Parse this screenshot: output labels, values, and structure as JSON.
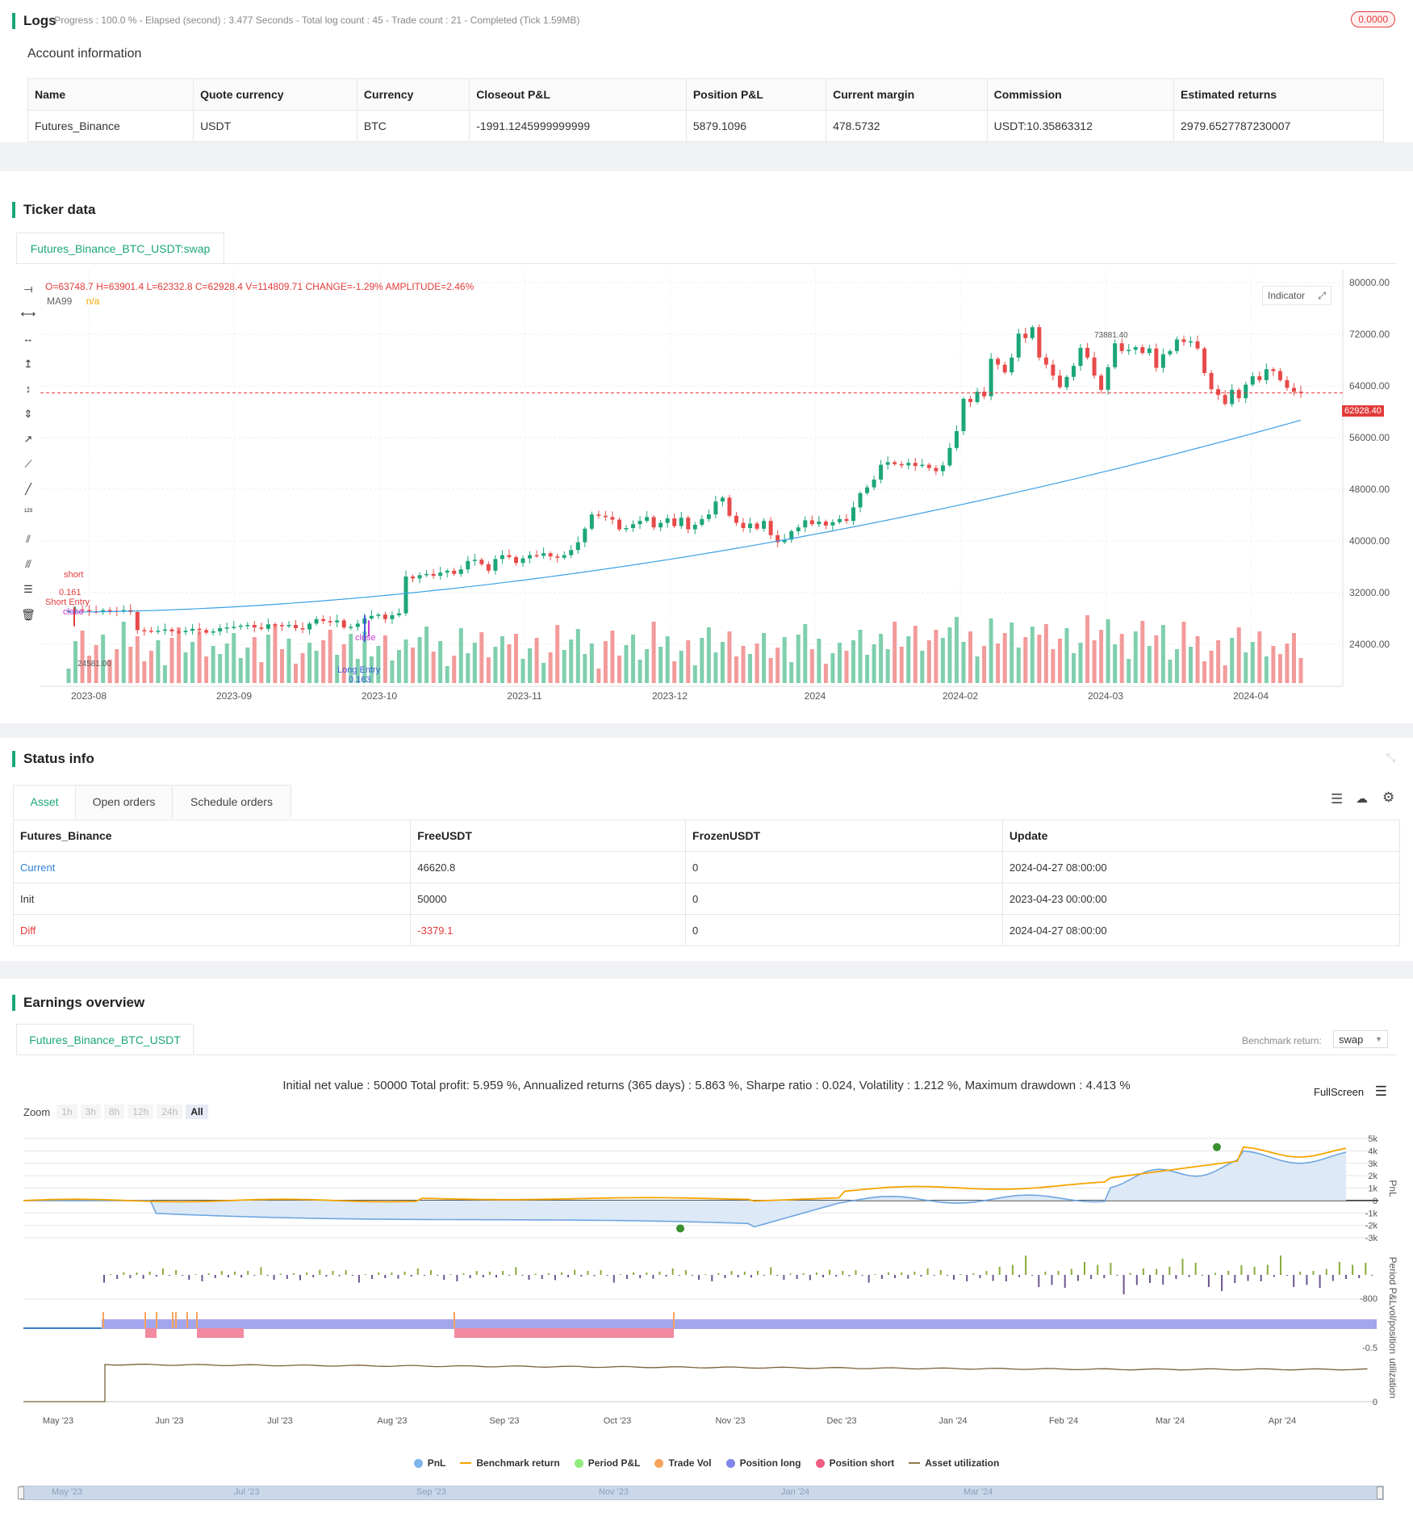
{
  "logs": {
    "title": "Logs",
    "status": "- Progress : 100.0 % - Elapsed (second) : 3.477  Seconds - Total log count : 45 - Trade count : 21 - Completed (Tick 1.59MB)",
    "badge": "0.0000"
  },
  "account": {
    "title": "Account information",
    "headers": [
      "Name",
      "Quote currency",
      "Currency",
      "Closeout P&L",
      "Position P&L",
      "Current margin",
      "Commission",
      "Estimated returns"
    ],
    "row": [
      "Futures_Binance",
      "USDT",
      "BTC",
      "-1991.1245999999999",
      "5879.1096",
      "478.5732",
      "USDT:10.35863312",
      "2979.6527787230007"
    ]
  },
  "ticker": {
    "title": "Ticker data",
    "tab": "Futures_Binance_BTC_USDT:swap",
    "ohlc": {
      "o": "O=63748.7",
      "h": "H=63901.4",
      "l": "L=62332.8",
      "c": "C=62928.4",
      "v": "V=114809.71",
      "change": "CHANGE=-1.29%",
      "amp": "AMPLITUDE=2.46%"
    },
    "ma_label": "MA99",
    "ma_value": "n/a",
    "indicator_btn": "Indicator",
    "last_price": "62928.40",
    "high_marker": "73881.40",
    "low_marker": "24581.00",
    "annotations": {
      "short": "short",
      "short_qty": "0.161",
      "short_entry": "Short Entry",
      "close1": "close",
      "close2": "close",
      "long_entry": "Long Entry",
      "long_qty": "0.163"
    },
    "chart_data": {
      "type": "candlestick",
      "x_ticks": [
        "2023-08",
        "2023-09",
        "2023-10",
        "2023-11",
        "2023-12",
        "2024",
        "2024-02",
        "2024-03",
        "2024-04"
      ],
      "y_ticks": [
        "80000.00",
        "72000.00",
        "64000.00",
        "56000.00",
        "48000.00",
        "40000.00",
        "32000.00",
        "24000.00"
      ],
      "ylim": [
        18000,
        82000
      ],
      "close_path": [
        29200,
        29400,
        29300,
        29100,
        29000,
        29300,
        29200,
        29100,
        29300,
        29000,
        26200,
        26100,
        26000,
        26100,
        26300,
        26000,
        25900,
        26100,
        26400,
        26200,
        25800,
        26000,
        26500,
        26600,
        26700,
        26900,
        27000,
        26600,
        26400,
        27100,
        27000,
        26800,
        27000,
        26500,
        26300,
        27200,
        27900,
        27600,
        27400,
        27700,
        26600,
        26700,
        27200,
        28000,
        28400,
        28600,
        27900,
        28500,
        28800,
        34500,
        34200,
        34700,
        34900,
        34600,
        35100,
        35400,
        34900,
        35600,
        36900,
        37100,
        36400,
        35400,
        37200,
        37800,
        37500,
        36600,
        37300,
        37800,
        37700,
        38100,
        37600,
        37400,
        37800,
        38600,
        39800,
        41900,
        44100,
        43900,
        43700,
        43300,
        41800,
        42000,
        42600,
        43100,
        43700,
        42100,
        42800,
        43500,
        42300,
        43600,
        41800,
        42500,
        43400,
        44100,
        46100,
        46700,
        43900,
        42800,
        42000,
        42700,
        41900,
        43100,
        40900,
        39800,
        40200,
        41500,
        42100,
        43200,
        42600,
        43000,
        42400,
        42900,
        43400,
        43100,
        45200,
        47400,
        48300,
        49500,
        51800,
        52200,
        51900,
        51700,
        52100,
        51600,
        51800,
        51300,
        50800,
        51700,
        54400,
        57000,
        62000,
        61500,
        63100,
        62400,
        68200,
        67300,
        66100,
        68400,
        72100,
        71400,
        73100,
        68400,
        67300,
        65600,
        63800,
        65400,
        67100,
        69900,
        68400,
        65600,
        63400,
        66900,
        70600,
        69400,
        69600,
        70000,
        69100,
        69800,
        66800,
        68900,
        69400,
        71200,
        70800,
        70900,
        69800,
        66000,
        63500,
        62600,
        61200,
        63400,
        62100,
        64200,
        65500,
        64900,
        66600,
        66300,
        64900,
        63700,
        63100,
        62900
      ]
    }
  },
  "status": {
    "title": "Status info",
    "tabs": [
      "Asset",
      "Open orders",
      "Schedule orders"
    ],
    "headers": [
      "Futures_Binance",
      "FreeUSDT",
      "FrozenUSDT",
      "Update"
    ],
    "rows": [
      [
        "Current",
        "46620.8",
        "0",
        "2024-04-27 08:00:00"
      ],
      [
        "Init",
        "50000",
        "0",
        "2023-04-23 00:00:00"
      ],
      [
        "Diff",
        "-3379.1",
        "0",
        "2024-04-27 08:00:00"
      ]
    ]
  },
  "earnings": {
    "title": "Earnings overview",
    "tab": "Futures_Binance_BTC_USDT",
    "benchmark_label": "Benchmark return:",
    "benchmark_value": "swap",
    "summary": "Initial net value : 50000 Total profit: 5.959 %, Annualized returns (365 days) : 5.863 %, Sharpe ratio : 0.024, Volatility : 1.212 %, Maximum drawdown : 4.413 %",
    "fullscreen": "FullScreen",
    "zoom_label": "Zoom",
    "zoom_options": [
      "1h",
      "3h",
      "8h",
      "12h",
      "24h",
      "All"
    ],
    "pnl_ticks": [
      "5k",
      "4k",
      "3k",
      "2k",
      "1k",
      "0",
      "-1k",
      "-2k",
      "-3k"
    ],
    "pnl_axis": "PnL",
    "period_axis": "Period P&L",
    "period_tick": "-800",
    "pos_axis": "vol/position",
    "pos_tick": "-0.5",
    "util_axis": "utilization",
    "util_tick": "0",
    "x_ticks": [
      "May '23",
      "Jun '23",
      "Jul '23",
      "Aug '23",
      "Sep '23",
      "Oct '23",
      "Nov '23",
      "Dec '23",
      "Jan '24",
      "Feb '24",
      "Mar '24",
      "Apr '24"
    ],
    "nav_ticks": [
      "May '23",
      "Jul '23",
      "Sep '23",
      "Nov '23",
      "Jan '24",
      "Mar '24"
    ],
    "legend": [
      {
        "label": "PnL",
        "color": "#7cb5ec"
      },
      {
        "label": "Benchmark return",
        "color": "#f7a400"
      },
      {
        "label": "Period P&L",
        "color": "#90ed7d"
      },
      {
        "label": "Trade Vol",
        "color": "#f7a35c"
      },
      {
        "label": "Position long",
        "color": "#8085e9"
      },
      {
        "label": "Position short",
        "color": "#f15c80"
      },
      {
        "label": "Asset utilization",
        "color": "#8d7a4f"
      }
    ]
  }
}
